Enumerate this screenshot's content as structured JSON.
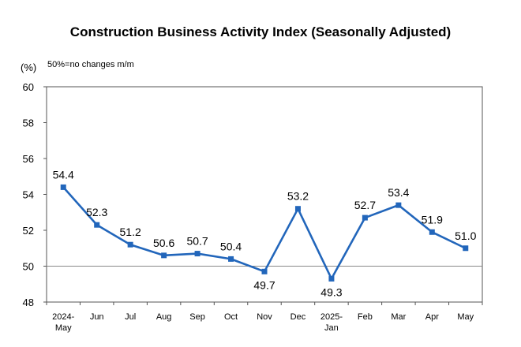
{
  "chart_data": {
    "type": "line",
    "title": "Construction Business Activity Index (Seasonally Adjusted)",
    "unit_label": "(%)",
    "note": "50%=no changes m/m",
    "categories": [
      [
        "2024-",
        "May"
      ],
      [
        "Jun"
      ],
      [
        "Jul"
      ],
      [
        "Aug"
      ],
      [
        "Sep"
      ],
      [
        "Oct"
      ],
      [
        "Nov"
      ],
      [
        "Dec"
      ],
      [
        "2025-",
        "Jan"
      ],
      [
        "Feb"
      ],
      [
        "Mar"
      ],
      [
        "Apr"
      ],
      [
        "May"
      ]
    ],
    "series": [
      {
        "values": [
          54.4,
          52.3,
          51.2,
          50.6,
          50.7,
          50.4,
          49.7,
          53.2,
          49.3,
          52.7,
          53.4,
          51.9,
          51.0
        ]
      }
    ],
    "data_labels": [
      "54.4",
      "52.3",
      "51.2",
      "50.6",
      "50.7",
      "50.4",
      "49.7",
      "53.2",
      "49.3",
      "52.7",
      "53.4",
      "51.9",
      "51.0"
    ],
    "label_position": [
      "above",
      "above",
      "above",
      "above",
      "above",
      "above",
      "below",
      "above",
      "below",
      "above",
      "above",
      "above",
      "above"
    ],
    "ylim": [
      48,
      60
    ],
    "yticks": [
      48,
      50,
      52,
      54,
      56,
      58,
      60
    ],
    "reference_line": 50,
    "grid": false,
    "legend": "none",
    "colors": {
      "line": "#2266bb",
      "axis": "#555555",
      "reference": "#888888"
    }
  }
}
